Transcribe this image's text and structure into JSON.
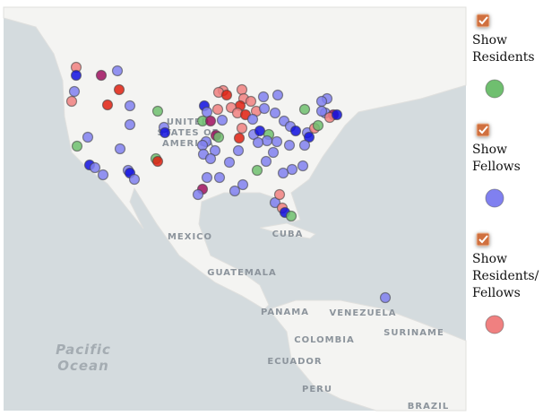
{
  "map": {
    "labels": {
      "usa": [
        "UNITED",
        "STATES OF",
        "AMERICA"
      ],
      "mexico": "MEXICO",
      "cuba": "CUBA",
      "guatemala": "GUATEMALA",
      "panama": "PANAMA",
      "venezuela": "VENEZUELA",
      "suriname": "SURINAME",
      "colombia": "COLOMBIA",
      "ecuador": "ECUADOR",
      "peru": "PERU",
      "brazil": "BRAZIL",
      "pacific": [
        "Pacific",
        "Ocean"
      ]
    }
  },
  "legend": [
    {
      "label": [
        "Show",
        "Residents"
      ],
      "color": "#6fbf6f"
    },
    {
      "label": [
        "Show",
        "Fellows"
      ],
      "color": "#8080f0"
    },
    {
      "label": [
        "Show",
        "Residents/",
        "Fellows"
      ],
      "color": "#f08080"
    }
  ]
}
